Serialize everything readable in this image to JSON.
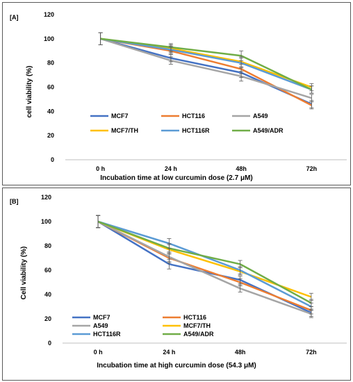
{
  "chart_data": [
    {
      "type": "line",
      "panel_label": "[A]",
      "categories": [
        "0 h",
        "24 h",
        "48h",
        "72h"
      ],
      "xlabel": "Incubation time at low curcumin dose (2.7  μM)",
      "ylabel": "cell viability (%)",
      "ylim": [
        0,
        120
      ],
      "yticks": [
        "0",
        "20",
        "40",
        "60",
        "80",
        "100",
        "120"
      ],
      "grid": false,
      "legend_position": "center-left",
      "series": [
        {
          "name": "MCF7",
          "color": "#4472C4",
          "values": [
            100,
            84,
            72,
            46
          ]
        },
        {
          "name": "HCT116",
          "color": "#ED7D31",
          "values": [
            100,
            90,
            75,
            45
          ]
        },
        {
          "name": "A549",
          "color": "#A5A5A5",
          "values": [
            100,
            82,
            69,
            51
          ]
        },
        {
          "name": "MCF7/TH",
          "color": "#FFC000",
          "values": [
            100,
            92,
            81,
            60
          ]
        },
        {
          "name": "HCT116R",
          "color": "#5B9BD5",
          "values": [
            100,
            91,
            80,
            58
          ]
        },
        {
          "name": "A549/ADR",
          "color": "#70AD47",
          "values": [
            100,
            93,
            86,
            58
          ]
        }
      ],
      "error": [
        5,
        3,
        4,
        3
      ]
    },
    {
      "type": "line",
      "panel_label": "[B]",
      "categories": [
        "0 h",
        "24 h",
        "48h",
        "72h"
      ],
      "xlabel": "Incubation time at high curcumin dose (54.3  μM)",
      "ylabel": "Cell viability (%)",
      "ylim": [
        0,
        120
      ],
      "yticks": [
        "0",
        "20",
        "40",
        "60",
        "80",
        "100",
        "120"
      ],
      "grid": false,
      "legend_position": "bottom-left",
      "series": [
        {
          "name": "MCF7",
          "color": "#4472C4",
          "values": [
            100,
            65,
            52,
            25
          ]
        },
        {
          "name": "HCT116",
          "color": "#ED7D31",
          "values": [
            100,
            70,
            50,
            27
          ]
        },
        {
          "name": "A549",
          "color": "#A5A5A5",
          "values": [
            100,
            71,
            45,
            24
          ]
        },
        {
          "name": "MCF7/TH",
          "color": "#FFC000",
          "values": [
            100,
            77,
            59,
            38
          ]
        },
        {
          "name": "HCT116R",
          "color": "#5B9BD5",
          "values": [
            100,
            82,
            60,
            30
          ]
        },
        {
          "name": "A549/ADR",
          "color": "#70AD47",
          "values": [
            100,
            78,
            65,
            33
          ]
        }
      ],
      "error": [
        5,
        4,
        3,
        3
      ]
    }
  ]
}
